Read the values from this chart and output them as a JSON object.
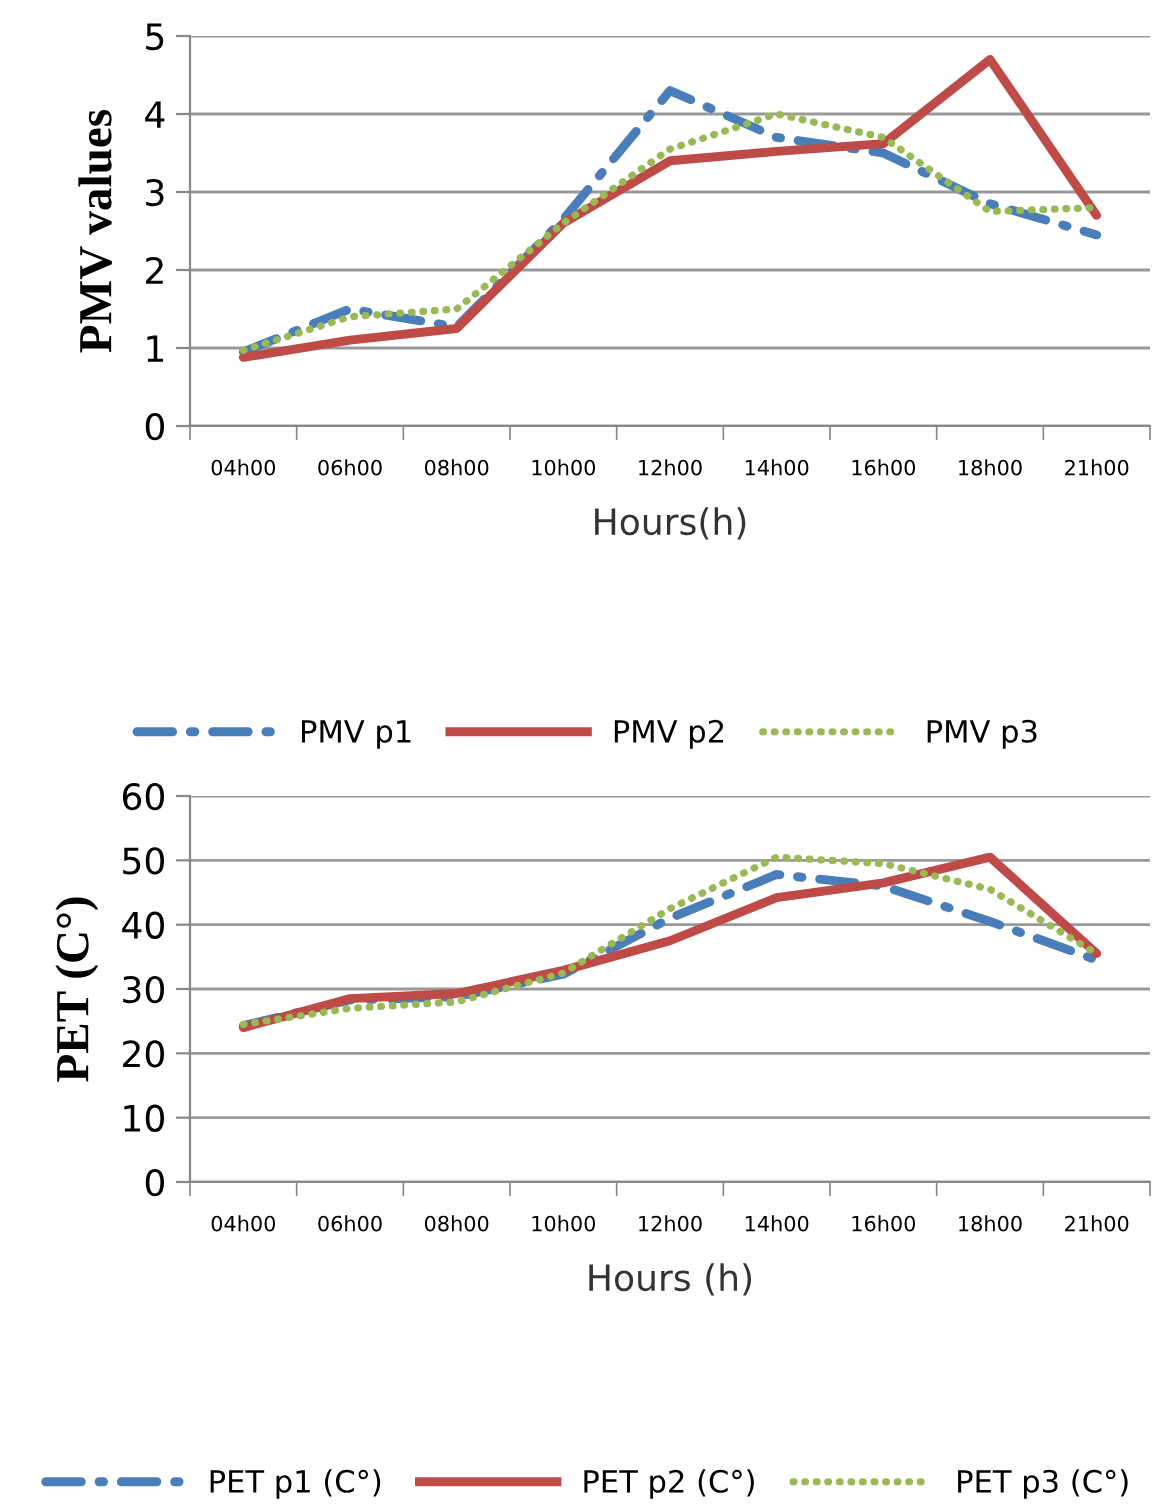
{
  "chart_data": [
    {
      "type": "line",
      "ylabel": "PMV values",
      "xlabel": "Hours(h)",
      "categories": [
        "04h00",
        "06h00",
        "08h00",
        "10h00",
        "12h00",
        "14h00",
        "16h00",
        "18h00",
        "21h00"
      ],
      "series": [
        {
          "name": "PMV p1",
          "color": "#4a7ebb",
          "line_style": "dashdot",
          "values": [
            0.95,
            1.5,
            1.27,
            2.65,
            4.3,
            3.7,
            3.5,
            2.85,
            2.45
          ]
        },
        {
          "name": "PMV p2",
          "color": "#be4b48",
          "line_style": "solid",
          "values": [
            0.88,
            1.1,
            1.25,
            2.6,
            3.4,
            3.52,
            3.62,
            4.7,
            2.7
          ]
        },
        {
          "name": "PMV p3",
          "color": "#98b954",
          "line_style": "dotted",
          "values": [
            0.97,
            1.4,
            1.5,
            2.6,
            3.55,
            4.0,
            3.7,
            2.75,
            2.8
          ]
        }
      ],
      "ylim": [
        0,
        5
      ],
      "yticks": [
        0,
        1,
        2,
        3,
        4,
        5
      ],
      "grid": "y",
      "legend": "bottom"
    },
    {
      "type": "line",
      "ylabel": "PET (C°)",
      "xlabel": "Hours (h)",
      "categories": [
        "04h00",
        "06h00",
        "08h00",
        "10h00",
        "12h00",
        "14h00",
        "16h00",
        "18h00",
        "21h00"
      ],
      "series": [
        {
          "name": "PET p1 (C°)",
          "color": "#4a7ebb",
          "line_style": "dashdot",
          "values": [
            24.3,
            28.3,
            28.8,
            32.3,
            41,
            47.8,
            46,
            40.5,
            34.5
          ]
        },
        {
          "name": "PET p2 (C°)",
          "color": "#be4b48",
          "line_style": "solid",
          "values": [
            24,
            28.5,
            29.3,
            32.9,
            37.5,
            44.2,
            46.5,
            50.5,
            35.5
          ]
        },
        {
          "name": "PET p3 (C°)",
          "color": "#98b954",
          "line_style": "dotted",
          "values": [
            24.5,
            27,
            28,
            32.5,
            42.5,
            50.5,
            49.5,
            45.5,
            35.5
          ]
        }
      ],
      "ylim": [
        0,
        60
      ],
      "yticks": [
        0,
        10,
        20,
        30,
        40,
        50,
        60
      ],
      "grid": "y",
      "legend": "bottom"
    }
  ]
}
